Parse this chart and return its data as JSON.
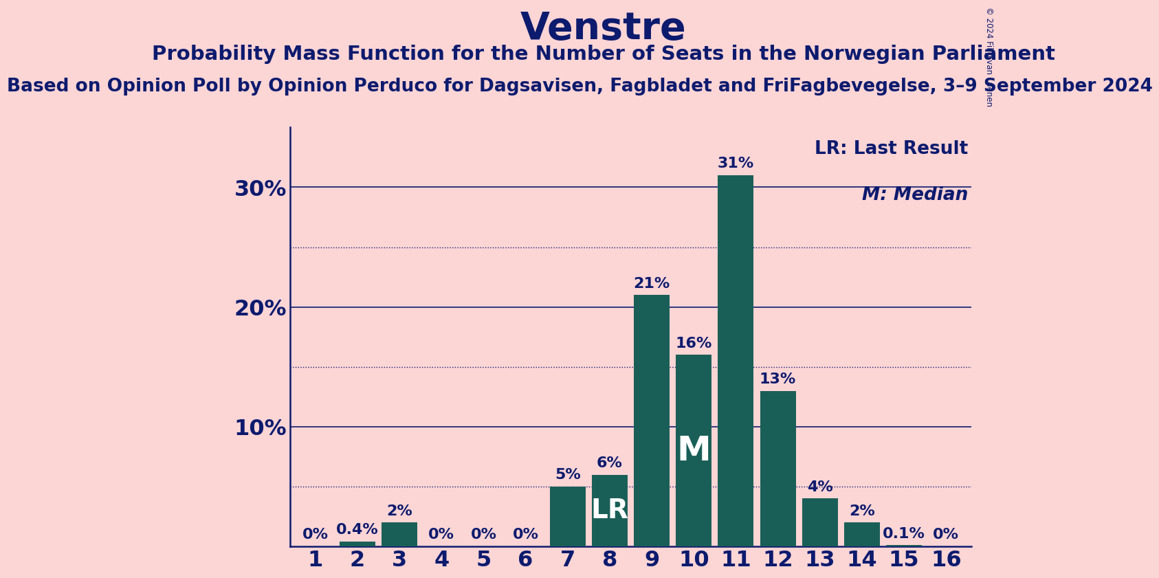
{
  "title": "Venstre",
  "subtitle": "Probability Mass Function for the Number of Seats in the Norwegian Parliament",
  "source_line": "Based on Opinion Poll by Opinion Perduco for Dagsavisen, Fagbladet and FriFagbevegelse, 3–9 September 2024",
  "copyright": "© 2024 Filip van Laenen",
  "categories": [
    1,
    2,
    3,
    4,
    5,
    6,
    7,
    8,
    9,
    10,
    11,
    12,
    13,
    14,
    15,
    16
  ],
  "values": [
    0.0,
    0.4,
    2.0,
    0.0,
    0.0,
    0.0,
    5.0,
    6.0,
    21.0,
    16.0,
    31.0,
    13.0,
    4.0,
    2.0,
    0.1,
    0.0
  ],
  "bar_labels": [
    "0%",
    "0.4%",
    "2%",
    "0%",
    "0%",
    "0%",
    "5%",
    "6%",
    "21%",
    "16%",
    "31%",
    "13%",
    "4%",
    "2%",
    "0.1%",
    "0%"
  ],
  "bar_color": "#1a5f57",
  "background_color": "#fcd5d5",
  "text_color": "#0d1b6e",
  "lr_bar_index": 7,
  "median_bar_index": 9,
  "lr_label": "LR",
  "median_label": "M",
  "legend_lr": "LR: Last Result",
  "legend_m": "M: Median",
  "yticks": [
    10,
    20,
    30
  ],
  "ytick_labels": [
    "10%",
    "20%",
    "30%"
  ],
  "ylim": [
    0,
    35
  ],
  "dotted_lines": [
    5,
    15,
    25
  ],
  "solid_lines": [
    10,
    20,
    30
  ],
  "title_fontsize": 40,
  "subtitle_fontsize": 21,
  "source_fontsize": 19,
  "bar_label_fontsize": 16,
  "axis_label_fontsize": 23,
  "legend_fontsize": 19,
  "inbar_lr_fontsize": 28,
  "inbar_m_fontsize": 36
}
